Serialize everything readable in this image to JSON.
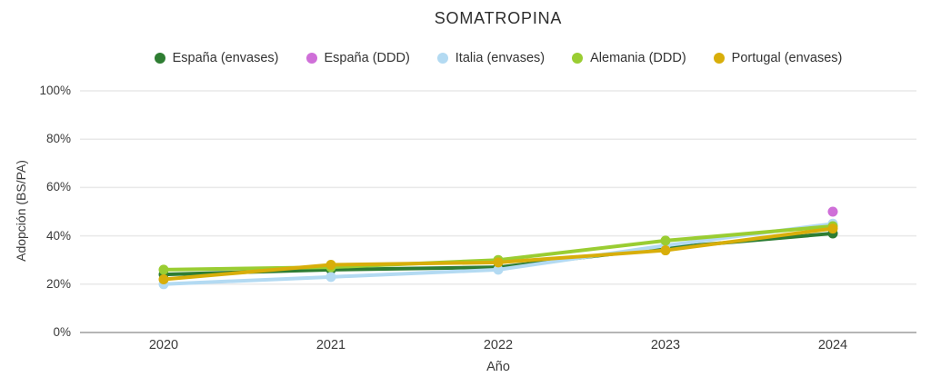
{
  "title": "SOMATROPINA",
  "axes": {
    "x_label": "Año",
    "y_label": "Adopción (BS/PA)",
    "y_ticks": [
      "100%",
      "80%",
      "60%",
      "40%",
      "20%",
      "0%"
    ]
  },
  "colors": {
    "grid": "#e9e9e9",
    "axis_line": "#b5b5b5",
    "text": "#3a3a3a"
  },
  "chart_data": {
    "type": "line",
    "x": [
      "2020",
      "2021",
      "2022",
      "2023",
      "2024"
    ],
    "series": [
      {
        "name": "España (envases)",
        "color": "#2e7d32",
        "values": [
          24,
          26,
          27,
          35,
          41
        ]
      },
      {
        "name": "España (DDD)",
        "color": "#cf6fd8",
        "values": [
          null,
          null,
          null,
          null,
          50
        ]
      },
      {
        "name": "Italia (envases)",
        "color": "#b3daf2",
        "values": [
          20,
          23,
          26,
          36,
          45
        ]
      },
      {
        "name": "Alemania (DDD)",
        "color": "#9acd32",
        "values": [
          26,
          27,
          30,
          38,
          44
        ]
      },
      {
        "name": "Portugal (envases)",
        "color": "#d8ae0a",
        "values": [
          22,
          28,
          29,
          34,
          43
        ]
      }
    ],
    "title": "SOMATROPINA",
    "xlabel": "Año",
    "ylabel": "Adopción (BS/PA)",
    "ylim": [
      0,
      100
    ],
    "grid": true,
    "legend_position": "top"
  }
}
